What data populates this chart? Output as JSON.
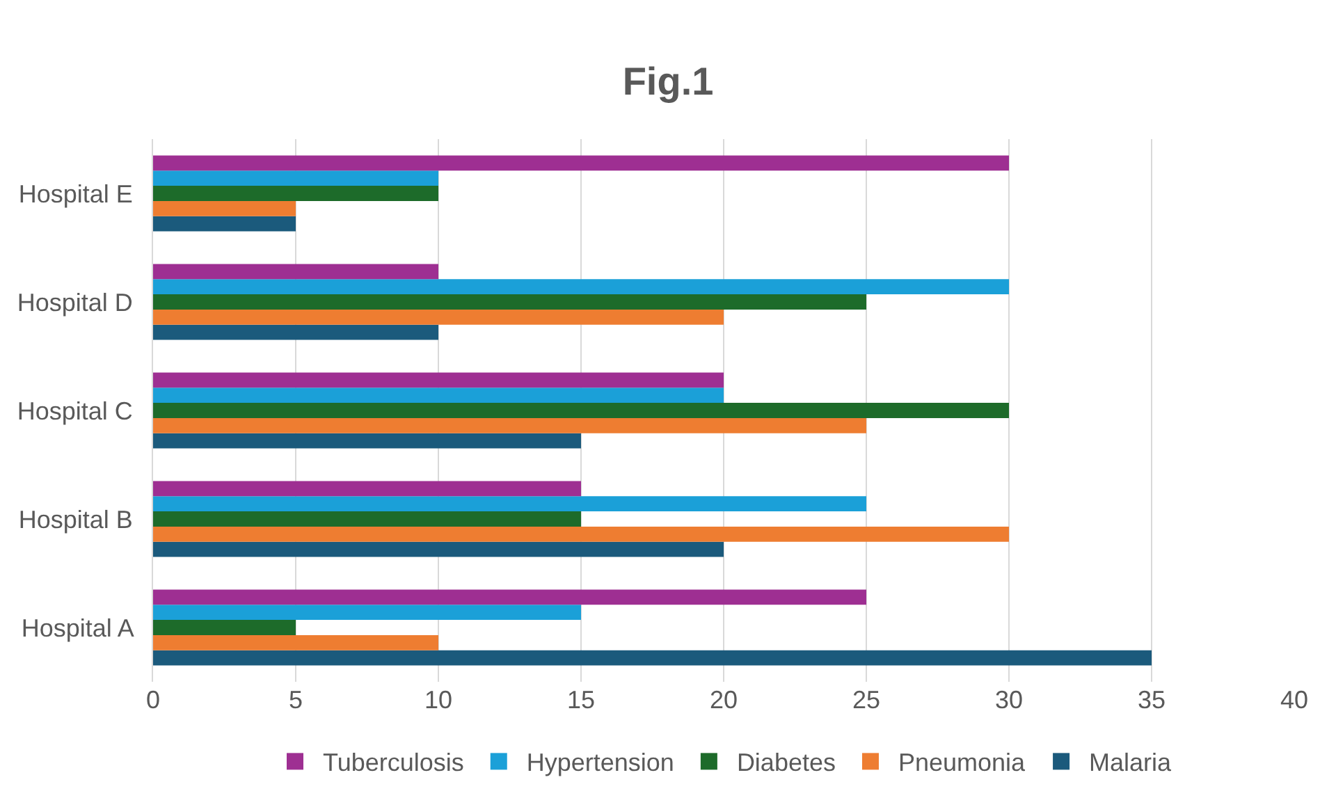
{
  "chart_data": {
    "type": "bar",
    "orientation": "horizontal",
    "title": "Fig.1",
    "categories": [
      "Hospital E",
      "Hospital D",
      "Hospital C",
      "Hospital B",
      "Hospital A"
    ],
    "series": [
      {
        "name": "Malaria",
        "color": "#1b5a7c",
        "values": [
          5,
          10,
          15,
          20,
          35
        ]
      },
      {
        "name": "Pneumonia",
        "color": "#ee7d31",
        "values": [
          5,
          20,
          25,
          30,
          10
        ]
      },
      {
        "name": "Diabetes",
        "color": "#1d6b2a",
        "values": [
          10,
          25,
          30,
          15,
          5
        ]
      },
      {
        "name": "Hypertension",
        "color": "#1ba0d8",
        "values": [
          10,
          30,
          20,
          25,
          15
        ]
      },
      {
        "name": "Tuberculosis",
        "color": "#9e2f92",
        "values": [
          30,
          10,
          20,
          15,
          25
        ]
      }
    ],
    "xlim": [
      0,
      40
    ],
    "xticks": [
      0,
      5,
      10,
      15,
      20,
      25,
      30,
      35,
      40
    ],
    "grid": "x",
    "legend": "bottom"
  }
}
